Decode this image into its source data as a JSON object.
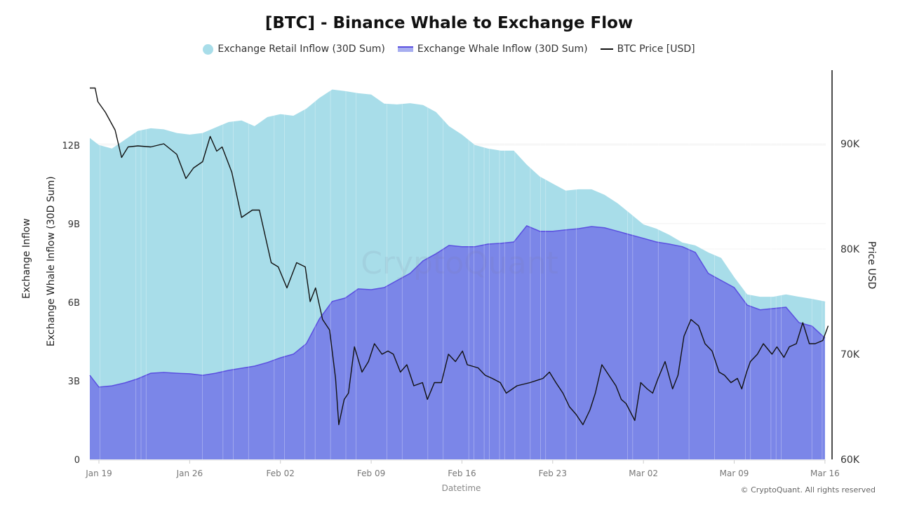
{
  "chart_data": {
    "type": "area",
    "title": "[BTC] - Binance Whale to Exchange Flow",
    "xlabel": "Datetime",
    "ylabel_left": [
      "Exchange Inflow",
      "Exchange Whale Inflow (30D Sum)"
    ],
    "ylabel_right": "Price USD",
    "x_ticks": [
      "Jan 19",
      "Jan 26",
      "Feb 02",
      "Feb 09",
      "Feb 16",
      "Feb 23",
      "Mar 02",
      "Mar 09",
      "Mar 16"
    ],
    "y_left_ticks": [
      "0",
      "3B",
      "6B",
      "9B",
      "12B"
    ],
    "y_right_ticks": [
      "60K",
      "70K",
      "80K",
      "90K"
    ],
    "y_left_range_billions": [
      0,
      14.86
    ],
    "y_right_range_thousands": [
      60,
      97
    ],
    "legend_placement": "top-center",
    "grid": "horizontal",
    "colors": {
      "retail": "#a8dde9",
      "whale_fill": "#7b86e8",
      "whale_line": "#5a4fe0",
      "price": "#111111"
    },
    "dates": [
      "Jan 18",
      "Jan 19",
      "Jan 20",
      "Jan 21",
      "Jan 22",
      "Jan 23",
      "Jan 24",
      "Jan 25",
      "Jan 26",
      "Jan 27",
      "Jan 28",
      "Jan 29",
      "Jan 30",
      "Jan 31",
      "Feb 01",
      "Feb 02",
      "Feb 03",
      "Feb 04",
      "Feb 05",
      "Feb 06",
      "Feb 07",
      "Feb 08",
      "Feb 09",
      "Feb 10",
      "Feb 11",
      "Feb 12",
      "Feb 13",
      "Feb 14",
      "Feb 15",
      "Feb 16",
      "Feb 17",
      "Feb 18",
      "Feb 19",
      "Feb 20",
      "Feb 21",
      "Feb 22",
      "Feb 23",
      "Feb 24",
      "Feb 25",
      "Feb 26",
      "Feb 27",
      "Feb 28",
      "Mar 01",
      "Mar 02",
      "Mar 03",
      "Mar 04",
      "Mar 05",
      "Mar 06",
      "Mar 07",
      "Mar 08",
      "Mar 09",
      "Mar 10",
      "Mar 11",
      "Mar 12",
      "Mar 13",
      "Mar 14",
      "Mar 15",
      "Mar 16"
    ],
    "series": [
      {
        "name": "Exchange Retail Inflow (30D Sum)",
        "unit": "B",
        "values": [
          12.27,
          12.0,
          11.87,
          12.2,
          12.54,
          12.64,
          12.6,
          12.46,
          12.4,
          12.46,
          12.67,
          12.88,
          12.94,
          12.72,
          13.07,
          13.18,
          13.12,
          13.39,
          13.8,
          14.12,
          14.06,
          13.98,
          13.93,
          13.58,
          13.55,
          13.6,
          13.53,
          13.26,
          12.72,
          12.4,
          12.0,
          11.87,
          11.79,
          11.79,
          11.25,
          10.8,
          10.53,
          10.26,
          10.31,
          10.31,
          10.1,
          9.78,
          9.38,
          8.97,
          8.81,
          8.57,
          8.28,
          8.17,
          7.9,
          7.69,
          6.96,
          6.3,
          6.21,
          6.21,
          6.3,
          6.21,
          6.13,
          6.03
        ]
      },
      {
        "name": "Exchange Whale Inflow (30D Sum)",
        "unit": "B",
        "values": [
          3.21,
          2.76,
          2.81,
          2.92,
          3.08,
          3.29,
          3.32,
          3.29,
          3.27,
          3.21,
          3.29,
          3.4,
          3.48,
          3.56,
          3.7,
          3.88,
          4.02,
          4.42,
          5.36,
          6.03,
          6.16,
          6.51,
          6.48,
          6.56,
          6.83,
          7.1,
          7.58,
          7.85,
          8.17,
          8.12,
          8.12,
          8.22,
          8.25,
          8.3,
          8.92,
          8.71,
          8.71,
          8.76,
          8.81,
          8.89,
          8.84,
          8.71,
          8.57,
          8.44,
          8.3,
          8.22,
          8.12,
          7.9,
          7.1,
          6.83,
          6.56,
          5.89,
          5.71,
          5.76,
          5.81,
          5.22,
          5.09,
          4.63
        ]
      },
      {
        "name": "BTC Price [USD]",
        "unit": "K",
        "x": [
          "Jan 18 00:00",
          "Jan 18 17:00",
          "Jan 18 22:00",
          "Jan 19 12:00",
          "Jan 20 06:00",
          "Jan 20 18:00",
          "Jan 21 06:00",
          "Jan 22 00:00",
          "Jan 23 00:00",
          "Jan 24 00:00",
          "Jan 25 00:00",
          "Jan 25 17:00",
          "Jan 26 07:00",
          "Jan 27 00:00",
          "Jan 27 14:00",
          "Jan 28 02:00",
          "Jan 28 12:00",
          "Jan 29 06:00",
          "Jan 30 00:00",
          "Jan 30 20:00",
          "Jan 31 09:00",
          "Feb 01 07:00",
          "Feb 01 20:00",
          "Feb 02 12:00",
          "Feb 03 06:00",
          "Feb 03 22:00",
          "Feb 04 07:00",
          "Feb 04 17:00",
          "Feb 05 06:00",
          "Feb 05 19:00",
          "Feb 06 06:00",
          "Feb 06 12:00",
          "Feb 06 22:00",
          "Feb 07 06:00",
          "Feb 07 17:00",
          "Feb 08 07:00",
          "Feb 08 19:00",
          "Feb 09 06:00",
          "Feb 09 20:00",
          "Feb 10 07:00",
          "Feb 10 17:00",
          "Feb 11 06:00",
          "Feb 11 18:00",
          "Feb 12 07:00",
          "Feb 12 23:00",
          "Feb 13 08:00",
          "Feb 13 21:00",
          "Feb 14 10:00",
          "Feb 14 23:00",
          "Feb 15 12:00",
          "Feb 16 01:00",
          "Feb 16 10:00",
          "Feb 17 06:00",
          "Feb 17 19:00",
          "Feb 18 08:00",
          "Feb 18 23:00",
          "Feb 19 10:00",
          "Feb 20 06:00",
          "Feb 21 06:00",
          "Feb 22 06:00",
          "Feb 22 18:00",
          "Feb 23 06:00",
          "Feb 23 19:00",
          "Feb 24 07:00",
          "Feb 24 19:00",
          "Feb 25 08:00",
          "Feb 25 21:00",
          "Feb 26 07:00",
          "Feb 26 19:00",
          "Feb 27 08:00",
          "Feb 27 21:00",
          "Feb 28 07:00",
          "Feb 28 16:00",
          "Mar 01 08:00",
          "Mar 01 19:00",
          "Mar 02 07:00",
          "Mar 02 17:00",
          "Mar 03 03:00",
          "Mar 03 16:00",
          "Mar 04 06:00",
          "Mar 04 16:00",
          "Mar 05 03:00",
          "Mar 05 16:00",
          "Mar 06 06:00",
          "Mar 06 18:00",
          "Mar 07 07:00",
          "Mar 07 20:00",
          "Mar 08 06:00",
          "Mar 08 18:00",
          "Mar 09 06:00",
          "Mar 09 14:00",
          "Mar 09 23:00",
          "Mar 10 06:00",
          "Mar 10 19:00",
          "Mar 11 06:00",
          "Mar 11 22:00",
          "Mar 12 07:00",
          "Mar 12 20:00",
          "Mar 13 06:00",
          "Mar 13 19:00",
          "Mar 14 07:00",
          "Mar 14 19:00",
          "Mar 15 06:00",
          "Mar 15 20:00",
          "Mar 16 06:00"
        ],
        "values": [
          95.3,
          95.3,
          94.0,
          93.0,
          91.3,
          88.7,
          89.7,
          89.8,
          89.7,
          90.0,
          89.0,
          86.7,
          87.7,
          88.3,
          90.7,
          89.3,
          89.7,
          87.3,
          83.0,
          83.7,
          83.7,
          78.7,
          78.3,
          76.3,
          78.7,
          78.3,
          75.0,
          76.3,
          73.3,
          72.3,
          67.7,
          63.3,
          65.7,
          66.3,
          70.7,
          68.3,
          69.3,
          71.0,
          70.0,
          70.3,
          70.0,
          68.3,
          69.0,
          67.0,
          67.3,
          65.7,
          67.3,
          67.3,
          70.0,
          69.3,
          70.3,
          69.0,
          68.7,
          68.0,
          67.7,
          67.3,
          66.3,
          67.0,
          67.3,
          67.7,
          68.3,
          67.3,
          66.3,
          65.0,
          64.3,
          63.3,
          64.7,
          66.3,
          69.0,
          68.0,
          67.0,
          65.7,
          65.3,
          63.7,
          67.3,
          66.7,
          66.3,
          67.7,
          69.3,
          66.7,
          68.0,
          71.7,
          73.3,
          72.7,
          71.0,
          70.3,
          68.3,
          68.0,
          67.3,
          67.7,
          66.7,
          68.3,
          69.3,
          70.0,
          71.0,
          70.0,
          70.7,
          69.7,
          70.7,
          71.0,
          73.0,
          71.0,
          71.0,
          71.3,
          72.7
        ]
      }
    ],
    "watermark": "CryptoQuant"
  },
  "footer": {
    "copyright": "© CryptoQuant. All rights reserved"
  }
}
